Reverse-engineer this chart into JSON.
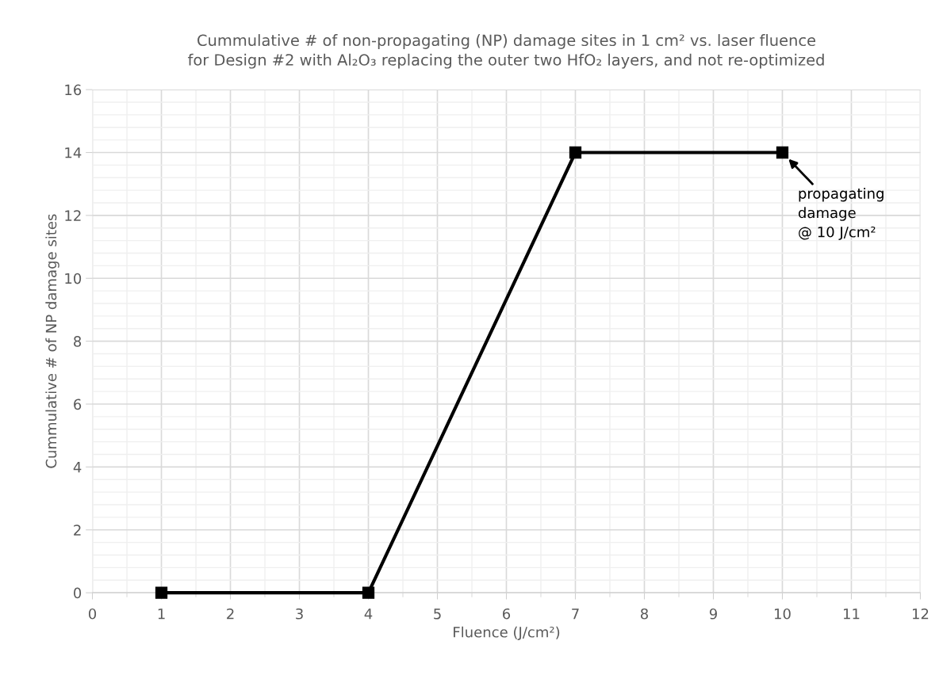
{
  "chart_data": {
    "type": "line",
    "title": "Cummulative # of non-propagating (NP) damage sites in 1 cm² vs. laser fluence\nfor Design #2 with Al₂O₃ replacing the outer two HfO₂ layers, and not re-optimized",
    "xlabel": "Fluence (J/cm²)",
    "ylabel": "Cummulative # of NP damage sites",
    "series": [
      {
        "color": "#000000",
        "x": [
          1,
          4,
          7,
          10
        ],
        "values": [
          0,
          0,
          14,
          14
        ]
      }
    ],
    "xlim": [
      0,
      12
    ],
    "xticks": [
      0,
      1,
      2,
      3,
      4,
      5,
      6,
      7,
      8,
      9,
      10,
      11,
      12
    ],
    "ylim": [
      0,
      16
    ],
    "yticks": [
      0,
      2,
      4,
      6,
      8,
      10,
      12,
      14,
      16
    ],
    "grid": true,
    "marker": "square",
    "line_style": "solid",
    "annotations": [
      {
        "text": "propagating\ndamage\n@ 10 J/cm²",
        "x": 10,
        "y": 14
      }
    ]
  }
}
